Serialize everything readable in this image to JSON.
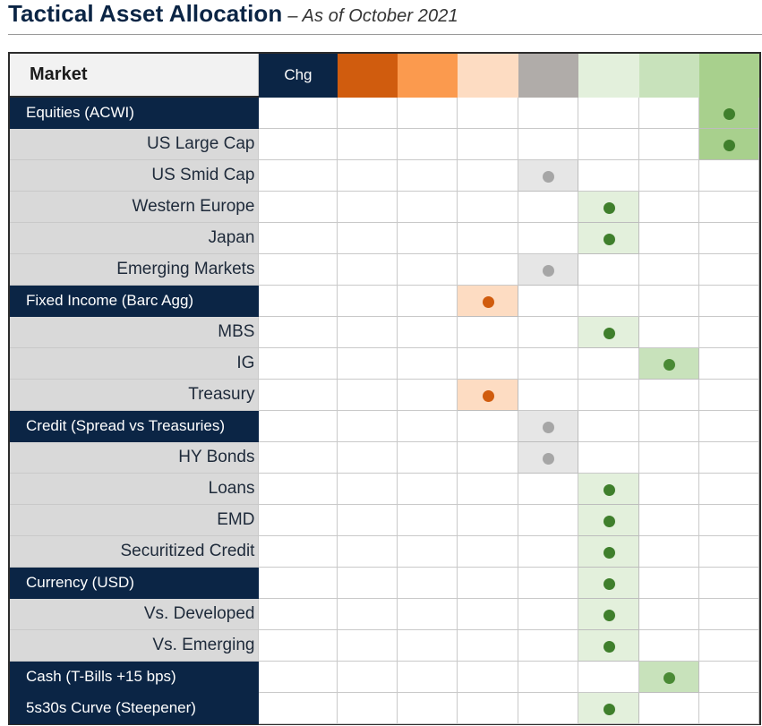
{
  "header": {
    "title": "Tactical Asset Allocation",
    "subtitle": "– As of October 2021"
  },
  "table": {
    "market_label": "Market",
    "chg_label": "Chg",
    "scale_colors": [
      "#d05c0e",
      "#fb9a4e",
      "#fddcc2",
      "#b0aca9",
      "#e3f0dc",
      "#c8e2bb",
      "#a8d08d"
    ],
    "cell_fill_colors": [
      "#d05c0e",
      "#fb9a4e",
      "#fddcc2",
      "#e6e6e6",
      "#e3f0dc",
      "#c8e2bb",
      "#a8d08d"
    ],
    "dot_colors": [
      "#8a3a0c",
      "#8a3a0c",
      "#d05c0e",
      "#a6a6a6",
      "#3f7f2c",
      "#4a8a35",
      "#3f7f2c"
    ],
    "rows": [
      {
        "label": "Equities  (ACWI)",
        "type": "header",
        "position": 6
      },
      {
        "label": "US Large Cap",
        "type": "sub",
        "position": 6
      },
      {
        "label": "US Smid Cap",
        "type": "sub",
        "position": 3
      },
      {
        "label": "Western Europe",
        "type": "sub",
        "position": 4
      },
      {
        "label": "Japan",
        "type": "sub",
        "position": 4
      },
      {
        "label": "Emerging Markets",
        "type": "sub",
        "position": 3
      },
      {
        "label": "Fixed Income (Barc Agg)",
        "type": "header",
        "position": 2
      },
      {
        "label": "MBS",
        "type": "sub",
        "position": 4
      },
      {
        "label": "IG",
        "type": "sub",
        "position": 5
      },
      {
        "label": "Treasury",
        "type": "sub",
        "position": 2
      },
      {
        "label": "Credit (Spread vs Treasuries)",
        "type": "header",
        "position": 3
      },
      {
        "label": "HY Bonds",
        "type": "sub",
        "position": 3
      },
      {
        "label": "Loans",
        "type": "sub",
        "position": 4
      },
      {
        "label": "EMD",
        "type": "sub",
        "position": 4
      },
      {
        "label": "Securitized Credit",
        "type": "sub",
        "position": 4
      },
      {
        "label": "Currency (USD)",
        "type": "header",
        "position": 4
      },
      {
        "label": "Vs. Developed",
        "type": "sub",
        "position": 4
      },
      {
        "label": "Vs. Emerging",
        "type": "sub",
        "position": 4
      },
      {
        "label": "Cash (T-Bills +15 bps)",
        "type": "header",
        "position": 5
      },
      {
        "label": "5s30s Curve (Steepener)",
        "type": "header",
        "position": 4
      }
    ]
  }
}
